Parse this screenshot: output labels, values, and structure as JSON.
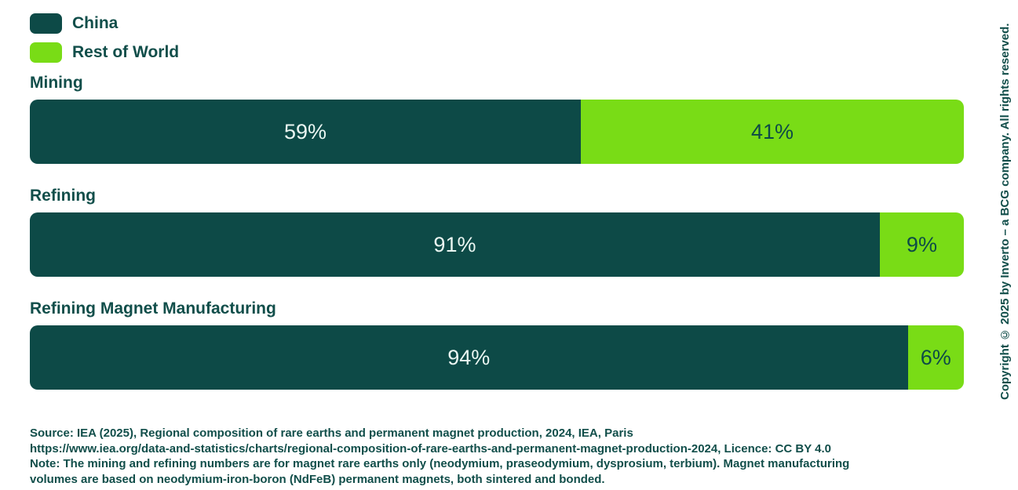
{
  "colors": {
    "china": "#0D4A47",
    "rest_of_world": "#79DC16",
    "text": "#114E4A",
    "label_on_china": "#EAF6F2",
    "label_on_rest": "#0D4A47"
  },
  "chart_data": {
    "type": "bar",
    "subtype": "horizontal-stacked",
    "categories": [
      "Mining",
      "Refining",
      "Refining Magnet Manufacturing"
    ],
    "series": [
      {
        "name": "China",
        "color": "#0D4A47",
        "values": [
          59,
          91,
          94
        ]
      },
      {
        "name": "Rest of World",
        "color": "#79DC16",
        "values": [
          41,
          9,
          6
        ]
      }
    ],
    "value_unit": "%",
    "xlim": [
      0,
      100
    ],
    "legend_position": "top-left",
    "grid": false,
    "data_labels": [
      "59%",
      "41%",
      "91%",
      "9%",
      "94%",
      "6%"
    ]
  },
  "footer": {
    "lines": [
      "Source: IEA (2025), Regional composition of rare earths and permanent magnet production, 2024, IEA, Paris",
      "https://www.iea.org/data-and-statistics/charts/regional-composition-of-rare-earths-and-permanent-magnet-production-2024, Licence: CC BY 4.0",
      "Note: The mining and refining numbers are for magnet rare earths only (neodymium, praseodymium, dysprosium, terbium). Magnet manufacturing",
      "volumes are based on neodymium-iron-boron (NdFeB) permanent magnets, both sintered and bonded."
    ]
  },
  "copyright": "Copyright © 2025 by Inverto – a BCG company. All rights reserved."
}
